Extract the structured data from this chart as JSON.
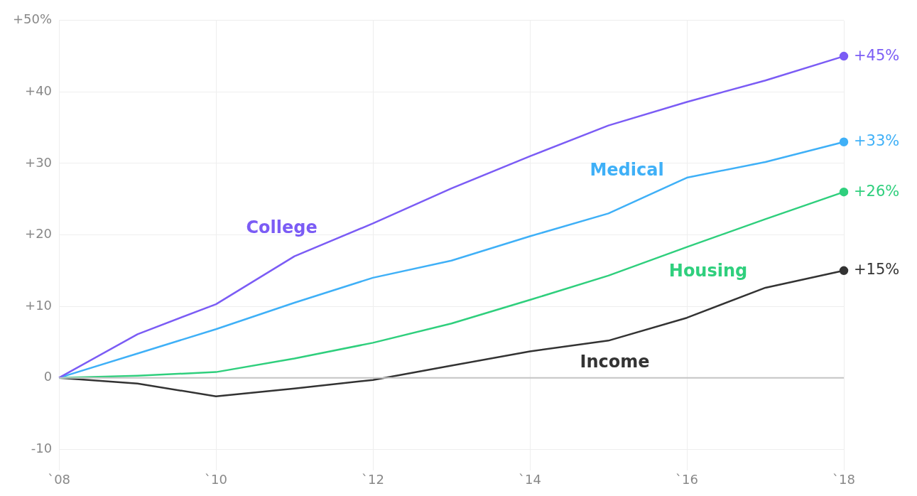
{
  "chart_data": {
    "type": "line",
    "categories": [
      "`08",
      null,
      "`10",
      null,
      "`12",
      null,
      "`14",
      null,
      "`16",
      null,
      "`18"
    ],
    "series": [
      {
        "name": "College",
        "color": "#7b5cf5",
        "values": [
          0,
          6.1,
          10.3,
          17,
          21.6,
          26.5,
          31,
          35.3,
          38.6,
          41.6,
          45
        ],
        "value_labels": [
          null,
          null,
          null,
          null,
          null,
          null,
          null,
          null,
          null,
          null,
          "+45%"
        ]
      },
      {
        "name": "Medical",
        "color": "#3fb0f7",
        "values": [
          0,
          3.4,
          6.8,
          10.5,
          14,
          16.4,
          19.8,
          23,
          28,
          30.2,
          33
        ],
        "value_labels": [
          null,
          null,
          null,
          null,
          null,
          null,
          null,
          null,
          null,
          null,
          "+33%"
        ]
      },
      {
        "name": "Housing",
        "color": "#2fcf7d",
        "values": [
          0,
          0.3,
          0.8,
          2.7,
          4.9,
          7.6,
          10.9,
          14.3,
          18.3,
          22.2,
          26
        ],
        "value_labels": [
          null,
          null,
          null,
          null,
          null,
          null,
          null,
          null,
          null,
          null,
          "+26%"
        ]
      },
      {
        "name": "Income",
        "color": "#333333",
        "values": [
          0,
          -0.8,
          -2.6,
          -1.5,
          -0.3,
          1.7,
          3.7,
          5.2,
          8.4,
          12.6,
          15
        ],
        "value_labels": [
          null,
          null,
          null,
          null,
          null,
          null,
          null,
          null,
          null,
          null,
          "+15%"
        ]
      }
    ],
    "ylim": [
      -13,
      50
    ],
    "yticks": [
      {
        "value": -10,
        "label": "-10"
      },
      0,
      {
        "value": 10,
        "label": "+10"
      },
      {
        "value": 20,
        "label": "+20"
      },
      {
        "value": 30,
        "label": "+30"
      },
      {
        "value": 40,
        "label": "+40"
      },
      {
        "value": 50,
        "label": "+50%"
      }
    ],
    "ref_lines": [
      {
        "axis": "y",
        "value": 0,
        "label": null,
        "color": "#c4c4c4"
      }
    ],
    "grid": true,
    "legend": false,
    "line_style": "solid"
  }
}
